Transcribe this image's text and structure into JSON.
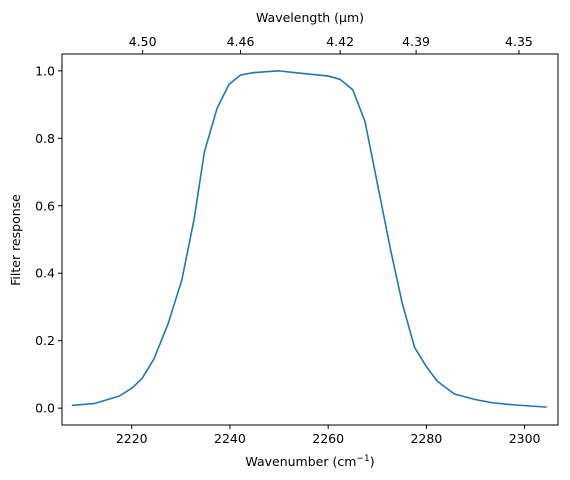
{
  "chart_data": {
    "type": "line",
    "xlabel": "Wavenumber (cm⁻¹)",
    "ylabel": "Filter response",
    "top_xlabel": "Wavelength (μm)",
    "xlim": [
      2205.8,
      2306.8
    ],
    "ylim": [
      -0.05,
      1.05
    ],
    "x_ticks": [
      2220,
      2240,
      2260,
      2280,
      2300
    ],
    "y_ticks": [
      0.0,
      0.2,
      0.4,
      0.6,
      0.8,
      1.0
    ],
    "top_ticks": [
      4.5,
      4.46,
      4.42,
      4.39,
      4.35
    ],
    "top_tick_labels": [
      "4.50",
      "4.46",
      "4.42",
      "4.39",
      "4.35"
    ],
    "series": [
      {
        "color": "#1f77b4",
        "x": [
          2207.8,
          2212.5,
          2217.5,
          2220.1,
          2222.1,
          2224.5,
          2227.4,
          2230.2,
          2232.7,
          2234.8,
          2237.4,
          2239.8,
          2242.2,
          2244.9,
          2250.0,
          2255.0,
          2259.9,
          2262.4,
          2265.0,
          2267.5,
          2270.1,
          2272.7,
          2275.1,
          2277.6,
          2280.0,
          2282.2,
          2285.7,
          2289.8,
          2293.4,
          2297.5,
          2304.5
        ],
        "y": [
          0.008,
          0.014,
          0.036,
          0.06,
          0.088,
          0.145,
          0.25,
          0.38,
          0.56,
          0.76,
          0.89,
          0.96,
          0.988,
          0.995,
          1.0,
          0.992,
          0.985,
          0.975,
          0.944,
          0.85,
          0.66,
          0.47,
          0.31,
          0.18,
          0.123,
          0.08,
          0.042,
          0.026,
          0.016,
          0.01,
          0.003
        ]
      }
    ]
  }
}
